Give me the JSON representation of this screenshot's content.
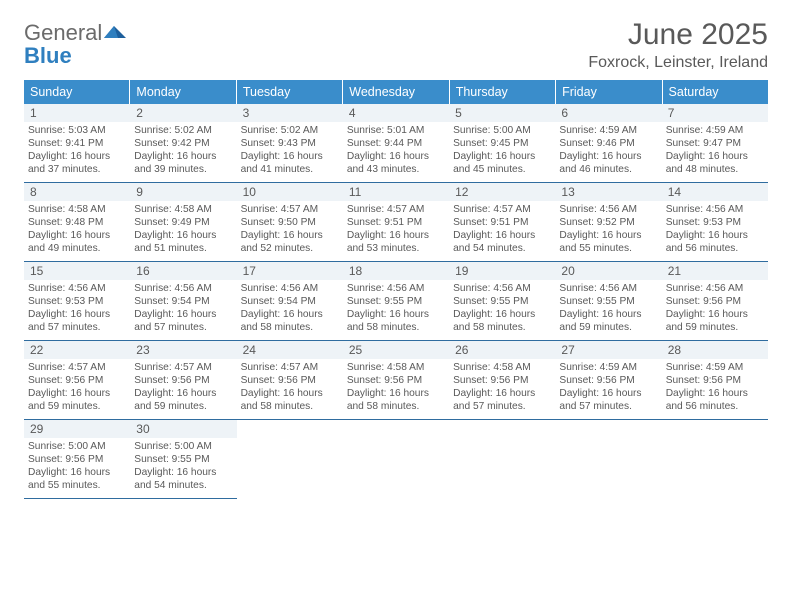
{
  "logo": {
    "general": "General",
    "blue": "Blue"
  },
  "title": "June 2025",
  "location": "Foxrock, Leinster, Ireland",
  "colors": {
    "header_bg": "#3a8dcb",
    "row_border": "#2f6c9f",
    "daynum_bg": "#eef3f7",
    "text": "#595959",
    "logo_blue": "#2f7fbf"
  },
  "day_names": [
    "Sunday",
    "Monday",
    "Tuesday",
    "Wednesday",
    "Thursday",
    "Friday",
    "Saturday"
  ],
  "weeks": [
    [
      {
        "n": "1",
        "sr": "5:03 AM",
        "ss": "9:41 PM",
        "dl": "16 hours and 37 minutes."
      },
      {
        "n": "2",
        "sr": "5:02 AM",
        "ss": "9:42 PM",
        "dl": "16 hours and 39 minutes."
      },
      {
        "n": "3",
        "sr": "5:02 AM",
        "ss": "9:43 PM",
        "dl": "16 hours and 41 minutes."
      },
      {
        "n": "4",
        "sr": "5:01 AM",
        "ss": "9:44 PM",
        "dl": "16 hours and 43 minutes."
      },
      {
        "n": "5",
        "sr": "5:00 AM",
        "ss": "9:45 PM",
        "dl": "16 hours and 45 minutes."
      },
      {
        "n": "6",
        "sr": "4:59 AM",
        "ss": "9:46 PM",
        "dl": "16 hours and 46 minutes."
      },
      {
        "n": "7",
        "sr": "4:59 AM",
        "ss": "9:47 PM",
        "dl": "16 hours and 48 minutes."
      }
    ],
    [
      {
        "n": "8",
        "sr": "4:58 AM",
        "ss": "9:48 PM",
        "dl": "16 hours and 49 minutes."
      },
      {
        "n": "9",
        "sr": "4:58 AM",
        "ss": "9:49 PM",
        "dl": "16 hours and 51 minutes."
      },
      {
        "n": "10",
        "sr": "4:57 AM",
        "ss": "9:50 PM",
        "dl": "16 hours and 52 minutes."
      },
      {
        "n": "11",
        "sr": "4:57 AM",
        "ss": "9:51 PM",
        "dl": "16 hours and 53 minutes."
      },
      {
        "n": "12",
        "sr": "4:57 AM",
        "ss": "9:51 PM",
        "dl": "16 hours and 54 minutes."
      },
      {
        "n": "13",
        "sr": "4:56 AM",
        "ss": "9:52 PM",
        "dl": "16 hours and 55 minutes."
      },
      {
        "n": "14",
        "sr": "4:56 AM",
        "ss": "9:53 PM",
        "dl": "16 hours and 56 minutes."
      }
    ],
    [
      {
        "n": "15",
        "sr": "4:56 AM",
        "ss": "9:53 PM",
        "dl": "16 hours and 57 minutes."
      },
      {
        "n": "16",
        "sr": "4:56 AM",
        "ss": "9:54 PM",
        "dl": "16 hours and 57 minutes."
      },
      {
        "n": "17",
        "sr": "4:56 AM",
        "ss": "9:54 PM",
        "dl": "16 hours and 58 minutes."
      },
      {
        "n": "18",
        "sr": "4:56 AM",
        "ss": "9:55 PM",
        "dl": "16 hours and 58 minutes."
      },
      {
        "n": "19",
        "sr": "4:56 AM",
        "ss": "9:55 PM",
        "dl": "16 hours and 58 minutes."
      },
      {
        "n": "20",
        "sr": "4:56 AM",
        "ss": "9:55 PM",
        "dl": "16 hours and 59 minutes."
      },
      {
        "n": "21",
        "sr": "4:56 AM",
        "ss": "9:56 PM",
        "dl": "16 hours and 59 minutes."
      }
    ],
    [
      {
        "n": "22",
        "sr": "4:57 AM",
        "ss": "9:56 PM",
        "dl": "16 hours and 59 minutes."
      },
      {
        "n": "23",
        "sr": "4:57 AM",
        "ss": "9:56 PM",
        "dl": "16 hours and 59 minutes."
      },
      {
        "n": "24",
        "sr": "4:57 AM",
        "ss": "9:56 PM",
        "dl": "16 hours and 58 minutes."
      },
      {
        "n": "25",
        "sr": "4:58 AM",
        "ss": "9:56 PM",
        "dl": "16 hours and 58 minutes."
      },
      {
        "n": "26",
        "sr": "4:58 AM",
        "ss": "9:56 PM",
        "dl": "16 hours and 57 minutes."
      },
      {
        "n": "27",
        "sr": "4:59 AM",
        "ss": "9:56 PM",
        "dl": "16 hours and 57 minutes."
      },
      {
        "n": "28",
        "sr": "4:59 AM",
        "ss": "9:56 PM",
        "dl": "16 hours and 56 minutes."
      }
    ],
    [
      {
        "n": "29",
        "sr": "5:00 AM",
        "ss": "9:56 PM",
        "dl": "16 hours and 55 minutes."
      },
      {
        "n": "30",
        "sr": "5:00 AM",
        "ss": "9:55 PM",
        "dl": "16 hours and 54 minutes."
      },
      null,
      null,
      null,
      null,
      null
    ]
  ]
}
